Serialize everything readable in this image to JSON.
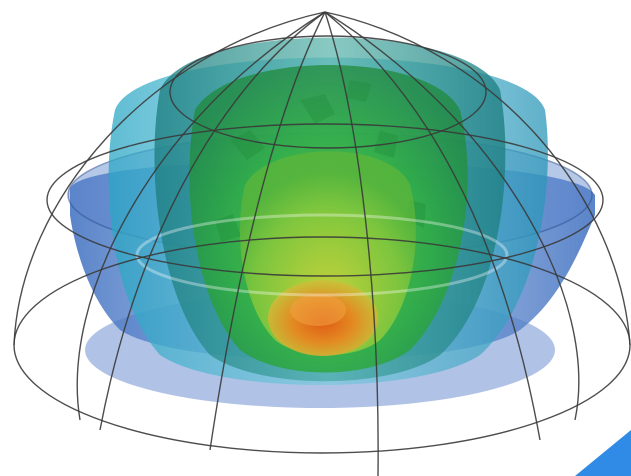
{
  "scene": {
    "subject": "3d-isosurface-dome",
    "palette": {
      "background": "#ffffff",
      "outer_blue": "#4a78c8",
      "cyan": "#3fb4cc",
      "teal": "#2e8f8a",
      "green": "#2fae3c",
      "light_green": "#7fd04a",
      "yellow": "#d8c43a",
      "orange": "#e07a1e",
      "wireframe": "#3a3a3a",
      "corner_accent": "#2f8be6"
    }
  }
}
